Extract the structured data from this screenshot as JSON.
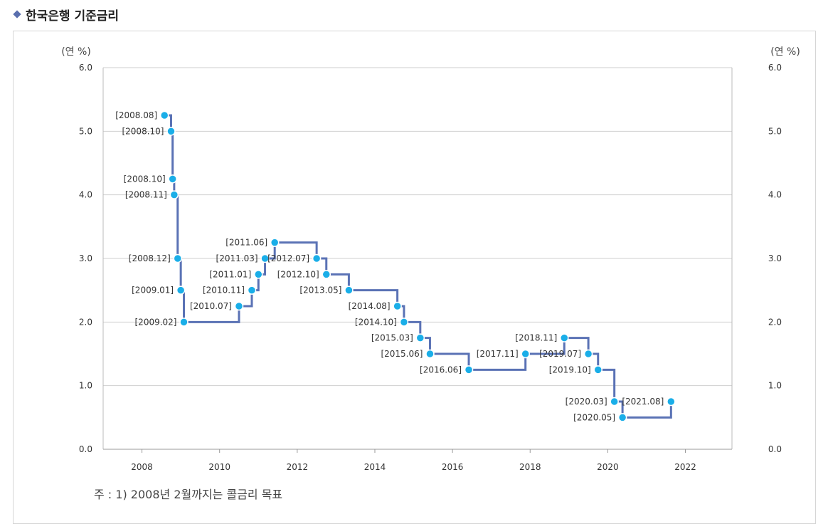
{
  "title": "한국은행 기준금리",
  "unit_left": "(연 %)",
  "unit_right": "(연 %)",
  "note": "주 : 1) 2008년 2월까지는 콜금리 목표",
  "colors": {
    "line": "#5a72b5",
    "point": "#1aaee8",
    "grid": "#cfcfcf",
    "bullet": "#5a6fae"
  },
  "chart_data": {
    "type": "line",
    "title": "한국은행 기준금리",
    "ylabel": "(연 %)",
    "xlim": [
      2007.0,
      2023.2
    ],
    "ylim": [
      0,
      6
    ],
    "y_ticks": [
      "0.0",
      "1.0",
      "2.0",
      "3.0",
      "4.0",
      "5.0",
      "6.0"
    ],
    "x_ticks": [
      "2008",
      "2010",
      "2012",
      "2014",
      "2016",
      "2018",
      "2020",
      "2022"
    ],
    "grid": true,
    "step": true,
    "points": [
      {
        "label": "[2008.08]",
        "x": 2008.58,
        "y": 5.25
      },
      {
        "label": "[2008.10]",
        "x": 2008.75,
        "y": 5.0
      },
      {
        "label": "[2008.10]",
        "x": 2008.79,
        "y": 4.25
      },
      {
        "label": "[2008.11]",
        "x": 2008.83,
        "y": 4.0
      },
      {
        "label": "[2008.12]",
        "x": 2008.92,
        "y": 3.0
      },
      {
        "label": "[2009.01]",
        "x": 2009.0,
        "y": 2.5
      },
      {
        "label": "[2009.02]",
        "x": 2009.08,
        "y": 2.0
      },
      {
        "label": "[2010.07]",
        "x": 2010.5,
        "y": 2.25
      },
      {
        "label": "[2010.11]",
        "x": 2010.83,
        "y": 2.5
      },
      {
        "label": "[2011.01]",
        "x": 2011.0,
        "y": 2.75
      },
      {
        "label": "[2011.03]",
        "x": 2011.17,
        "y": 3.0
      },
      {
        "label": "[2011.06]",
        "x": 2011.42,
        "y": 3.25
      },
      {
        "label": "[2012.07]",
        "x": 2012.5,
        "y": 3.0
      },
      {
        "label": "[2012.10]",
        "x": 2012.75,
        "y": 2.75
      },
      {
        "label": "[2013.05]",
        "x": 2013.33,
        "y": 2.5
      },
      {
        "label": "[2014.08]",
        "x": 2014.58,
        "y": 2.25
      },
      {
        "label": "[2014.10]",
        "x": 2014.75,
        "y": 2.0
      },
      {
        "label": "[2015.03]",
        "x": 2015.17,
        "y": 1.75
      },
      {
        "label": "[2015.06]",
        "x": 2015.42,
        "y": 1.5
      },
      {
        "label": "[2016.06]",
        "x": 2016.42,
        "y": 1.25
      },
      {
        "label": "[2017.11]",
        "x": 2017.88,
        "y": 1.5
      },
      {
        "label": "[2018.11]",
        "x": 2018.88,
        "y": 1.75
      },
      {
        "label": "[2019.07]",
        "x": 2019.5,
        "y": 1.5
      },
      {
        "label": "[2019.10]",
        "x": 2019.75,
        "y": 1.25
      },
      {
        "label": "[2020.03]",
        "x": 2020.17,
        "y": 0.75
      },
      {
        "label": "[2020.05]",
        "x": 2020.38,
        "y": 0.5
      },
      {
        "label": "[2021.08]",
        "x": 2021.63,
        "y": 0.75
      }
    ]
  }
}
